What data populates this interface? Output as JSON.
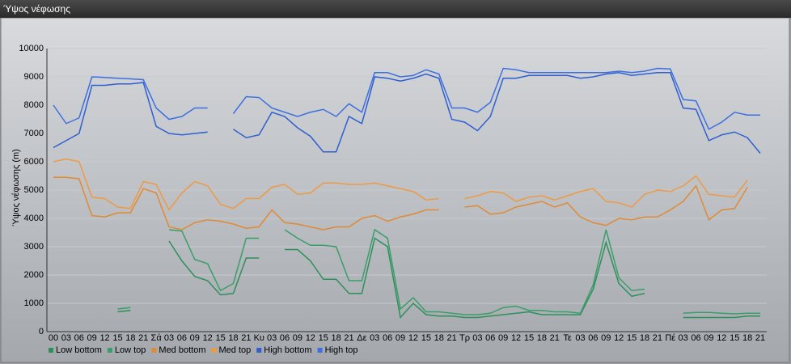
{
  "window": {
    "title": "Ύψος νέφωσης"
  },
  "chart_data": {
    "type": "line",
    "ylabel": "Ύψος νέφωσης (m)",
    "ylim": [
      0,
      10000
    ],
    "yticks": [
      0,
      1000,
      2000,
      3000,
      4000,
      5000,
      6000,
      7000,
      8000,
      9000,
      10000
    ],
    "grid": true,
    "legend": "bottom-left",
    "categories": [
      "00",
      "03",
      "06",
      "09",
      "12",
      "15",
      "18",
      "21",
      "Σά",
      "03",
      "06",
      "09",
      "12",
      "15",
      "18",
      "21",
      "Κυ",
      "03",
      "06",
      "09",
      "12",
      "15",
      "18",
      "21",
      "Δε",
      "03",
      "06",
      "09",
      "12",
      "15",
      "18",
      "21",
      "Τρ",
      "03",
      "06",
      "09",
      "12",
      "15",
      "18",
      "21",
      "Τε",
      "03",
      "06",
      "09",
      "12",
      "15",
      "18",
      "21",
      "Πέ",
      "03",
      "06",
      "09",
      "12",
      "15",
      "18",
      "21"
    ],
    "series": [
      {
        "name": "Low bottom",
        "color": "#2f8f5b",
        "values": [
          null,
          null,
          null,
          null,
          null,
          700,
          750,
          null,
          null,
          3200,
          2500,
          1950,
          1800,
          1300,
          1350,
          2600,
          2600,
          null,
          2900,
          2900,
          2500,
          1850,
          1850,
          1350,
          1350,
          3300,
          3000,
          500,
          1000,
          600,
          550,
          550,
          500,
          500,
          550,
          600,
          650,
          700,
          600,
          600,
          600,
          600,
          1500,
          3150,
          1700,
          1250,
          1350,
          null,
          null,
          500,
          500,
          500,
          500,
          500,
          550,
          550
        ]
      },
      {
        "name": "Low top",
        "color": "#3a9e6a",
        "values": [
          null,
          null,
          null,
          null,
          null,
          800,
          850,
          null,
          null,
          3600,
          3550,
          2550,
          2400,
          1450,
          1700,
          3300,
          3300,
          null,
          3600,
          3300,
          3050,
          3050,
          3000,
          1800,
          1800,
          3600,
          3300,
          800,
          1200,
          700,
          700,
          650,
          600,
          600,
          650,
          850,
          900,
          750,
          750,
          700,
          700,
          650,
          1650,
          3600,
          1900,
          1450,
          1500,
          null,
          null,
          650,
          680,
          680,
          650,
          630,
          650,
          650
        ]
      },
      {
        "name": "Med bottom",
        "color": "#e08a35",
        "values": [
          5450,
          5450,
          5400,
          4100,
          4050,
          4200,
          4200,
          5050,
          4900,
          3700,
          3600,
          3850,
          3950,
          3900,
          3800,
          3650,
          3700,
          4300,
          3850,
          3800,
          3700,
          3600,
          3700,
          3700,
          4000,
          4100,
          3900,
          4050,
          4150,
          4300,
          4300,
          null,
          4400,
          4450,
          4150,
          4200,
          4400,
          4500,
          4600,
          4400,
          4550,
          4050,
          3850,
          3750,
          4000,
          3950,
          4050,
          4050,
          4300,
          4600,
          5150,
          3950,
          4300,
          4350,
          5100,
          null
        ]
      },
      {
        "name": "Med top",
        "color": "#ee9a45",
        "values": [
          6000,
          6100,
          6000,
          4750,
          4700,
          4400,
          4350,
          5300,
          5200,
          4300,
          4900,
          5300,
          5150,
          4500,
          4350,
          4700,
          4700,
          5100,
          5200,
          4850,
          4900,
          5250,
          5250,
          5200,
          5200,
          5250,
          5150,
          5050,
          4950,
          4650,
          4700,
          null,
          4700,
          4800,
          4950,
          4900,
          4600,
          4750,
          4800,
          4650,
          4800,
          4950,
          5050,
          4600,
          4550,
          4400,
          4850,
          5000,
          4950,
          5150,
          5500,
          4850,
          4800,
          4750,
          5350,
          null
        ]
      },
      {
        "name": "High bottom",
        "color": "#2f5fd0",
        "values": [
          6500,
          6750,
          7000,
          8700,
          8700,
          8750,
          8750,
          8800,
          7250,
          7000,
          6950,
          7000,
          7050,
          null,
          7150,
          6850,
          6950,
          7750,
          7600,
          7200,
          6900,
          6350,
          6350,
          7600,
          7350,
          9000,
          8950,
          8850,
          8950,
          9100,
          8950,
          7500,
          7400,
          7100,
          7600,
          8950,
          8950,
          9050,
          9050,
          9050,
          9050,
          8950,
          9000,
          9100,
          9150,
          9050,
          9100,
          9150,
          9150,
          7900,
          7850,
          6750,
          6950,
          7050,
          6850,
          6300
        ]
      },
      {
        "name": "High top",
        "color": "#3d6fe0",
        "values": [
          8000,
          7350,
          7550,
          9000,
          8980,
          8950,
          8930,
          8900,
          7900,
          7500,
          7600,
          7900,
          7900,
          null,
          7700,
          8300,
          8270,
          7900,
          7750,
          7600,
          7750,
          7850,
          7600,
          8050,
          7750,
          9150,
          9150,
          9000,
          9050,
          9250,
          9100,
          7900,
          7900,
          7750,
          8100,
          9300,
          9250,
          9150,
          9150,
          9150,
          9150,
          9150,
          9150,
          9150,
          9200,
          9150,
          9200,
          9300,
          9280,
          8200,
          8150,
          7150,
          7400,
          7750,
          7650,
          7650
        ]
      }
    ]
  }
}
